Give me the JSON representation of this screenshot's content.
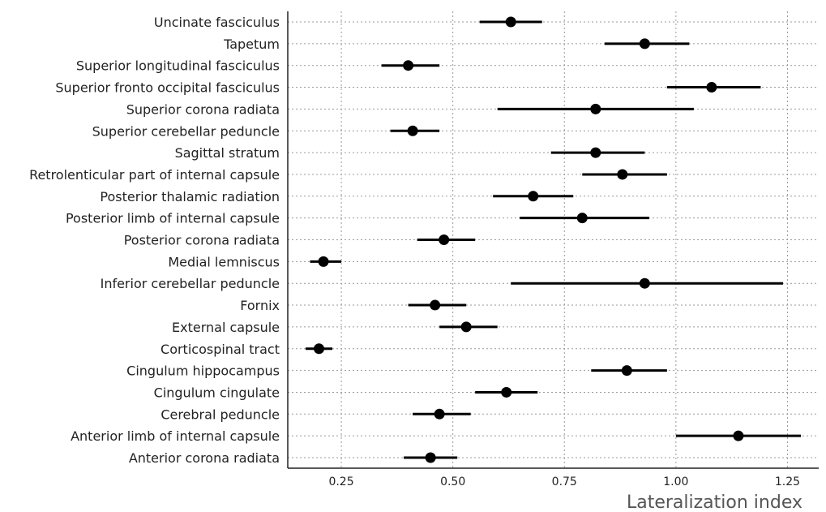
{
  "chart_data": {
    "type": "scatter",
    "subtype": "point-range",
    "title": "",
    "xlabel": "Lateralization index",
    "ylabel": "",
    "xlim": [
      0.13,
      1.32
    ],
    "xticks": [
      0.25,
      0.5,
      0.75,
      1.0,
      1.25
    ],
    "xtick_labels": [
      "0.25",
      "0.50",
      "0.75",
      "1.00",
      "1.25"
    ],
    "grid": true,
    "categories": [
      "Uncinate fasciculus",
      "Tapetum",
      "Superior longitudinal fasciculus",
      "Superior fronto occipital fasciculus",
      "Superior corona radiata",
      "Superior cerebellar peduncle",
      "Sagittal stratum",
      "Retrolenticular part of internal capsule",
      "Posterior thalamic radiation",
      "Posterior limb of internal capsule",
      "Posterior corona radiata",
      "Medial lemniscus",
      "Inferior cerebellar peduncle",
      "Fornix",
      "External capsule",
      "Corticospinal tract",
      "Cingulum hippocampus",
      "Cingulum cingulate",
      "Cerebral peduncle",
      "Anterior limb of internal capsule",
      "Anterior corona radiata"
    ],
    "values": [
      0.63,
      0.93,
      0.4,
      1.08,
      0.82,
      0.41,
      0.82,
      0.88,
      0.68,
      0.79,
      0.48,
      0.21,
      0.93,
      0.46,
      0.53,
      0.2,
      0.89,
      0.62,
      0.47,
      1.14,
      0.45
    ],
    "lower": [
      0.56,
      0.84,
      0.34,
      0.98,
      0.6,
      0.36,
      0.72,
      0.79,
      0.59,
      0.65,
      0.42,
      0.18,
      0.63,
      0.4,
      0.47,
      0.17,
      0.81,
      0.55,
      0.41,
      1.0,
      0.39
    ],
    "upper": [
      0.7,
      1.03,
      0.47,
      1.19,
      1.04,
      0.47,
      0.93,
      0.98,
      0.77,
      0.94,
      0.55,
      0.25,
      1.24,
      0.53,
      0.6,
      0.23,
      0.98,
      0.69,
      0.54,
      1.28,
      0.51
    ]
  }
}
